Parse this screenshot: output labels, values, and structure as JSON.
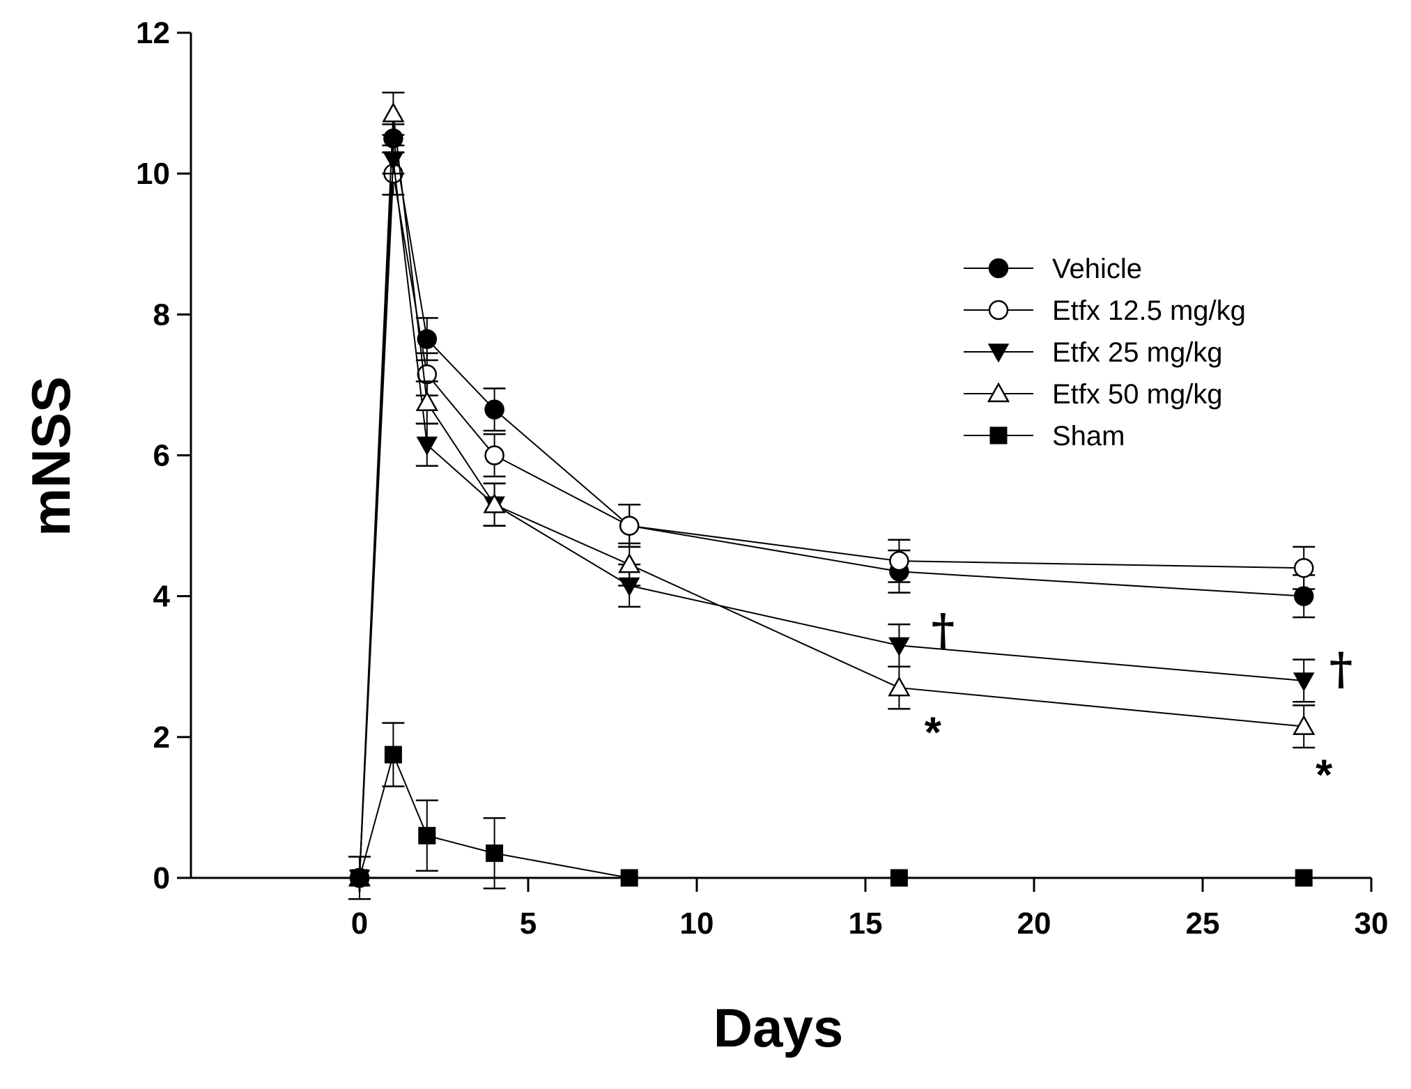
{
  "chart_data": {
    "type": "line",
    "title": "",
    "xlabel": "Days",
    "ylabel": "mNSS",
    "xlim": [
      -5,
      30
    ],
    "ylim": [
      0,
      12
    ],
    "x_ticks": [
      0,
      5,
      10,
      15,
      20,
      25,
      30
    ],
    "y_ticks": [
      0,
      2,
      4,
      6,
      8,
      10,
      12
    ],
    "grid": false,
    "legend_position": "top-right",
    "series": [
      {
        "name": "Vehicle",
        "marker": "filled-circle",
        "x": [
          0,
          1,
          2,
          4,
          8,
          16,
          28
        ],
        "y": [
          0,
          10.5,
          7.65,
          6.65,
          5.0,
          4.35,
          4.0
        ],
        "err": [
          0,
          0.2,
          0.3,
          0.3,
          0.3,
          0.3,
          0.3
        ]
      },
      {
        "name": "Etfx 12.5 mg/kg",
        "marker": "open-circle",
        "x": [
          0,
          1,
          2,
          4,
          8,
          16,
          28
        ],
        "y": [
          0,
          10.0,
          7.15,
          6.0,
          5.0,
          4.5,
          4.4
        ],
        "err": [
          0,
          0.3,
          0.3,
          0.3,
          0.3,
          0.3,
          0.3
        ]
      },
      {
        "name": "Etfx 25 mg/kg",
        "marker": "filled-triangle-down",
        "x": [
          0,
          1,
          2,
          4,
          8,
          16,
          28
        ],
        "y": [
          0,
          10.2,
          6.15,
          5.3,
          4.15,
          3.3,
          2.8
        ],
        "err": [
          0,
          0.2,
          0.3,
          0.3,
          0.3,
          0.3,
          0.3
        ]
      },
      {
        "name": "Etfx 50 mg/kg",
        "marker": "open-triangle-up",
        "x": [
          0,
          1,
          2,
          4,
          8,
          16,
          28
        ],
        "y": [
          0,
          10.85,
          6.75,
          5.3,
          4.45,
          2.7,
          2.15
        ],
        "err": [
          0,
          0.3,
          0.3,
          0.3,
          0.3,
          0.3,
          0.3
        ]
      },
      {
        "name": "Sham",
        "marker": "filled-square",
        "x": [
          0,
          1,
          2,
          4,
          8,
          16,
          28
        ],
        "y": [
          0,
          1.75,
          0.6,
          0.35,
          0,
          0,
          0
        ],
        "err": [
          0.3,
          0.45,
          0.5,
          0.5,
          0,
          0,
          0
        ]
      }
    ],
    "annotations": [
      {
        "text": "†",
        "x": 17.3,
        "y": 3.3
      },
      {
        "text": "*",
        "x": 17.0,
        "y": 2.15
      },
      {
        "text": "†",
        "x": 29.1,
        "y": 2.75
      },
      {
        "text": "*",
        "x": 28.6,
        "y": 1.55
      }
    ]
  }
}
